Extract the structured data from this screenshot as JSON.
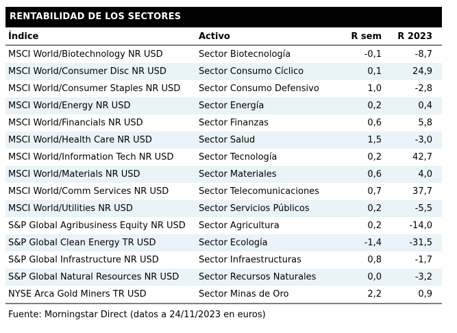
{
  "title": "RENTABILIDAD DE LOS SECTORES",
  "table": {
    "columns": [
      "Índice",
      "Activo",
      "R sem",
      "R 2023"
    ],
    "rows": [
      {
        "indice": "MSCI World/Biotechnology NR USD",
        "activo": "Sector Biotecnología",
        "r_sem": "-0,1",
        "r_2023": "-8,7"
      },
      {
        "indice": "MSCI World/Consumer Disc NR USD",
        "activo": "Sector Consumo Cíclico",
        "r_sem": "0,1",
        "r_2023": "24,9"
      },
      {
        "indice": "MSCI World/Consumer Staples NR USD",
        "activo": "Sector Consumo Defensivo",
        "r_sem": "1,0",
        "r_2023": "-2,8"
      },
      {
        "indice": "MSCI World/Energy NR USD",
        "activo": "Sector Energía",
        "r_sem": "0,2",
        "r_2023": "0,4"
      },
      {
        "indice": "MSCI World/Financials NR USD",
        "activo": "Sector Finanzas",
        "r_sem": "0,6",
        "r_2023": "5,8"
      },
      {
        "indice": "MSCI World/Health Care NR USD",
        "activo": "Sector Salud",
        "r_sem": "1,5",
        "r_2023": "-3,0"
      },
      {
        "indice": "MSCI World/Information Tech NR USD",
        "activo": "Sector Tecnología",
        "r_sem": "0,2",
        "r_2023": "42,7"
      },
      {
        "indice": "MSCI World/Materials NR USD",
        "activo": "Sector Materiales",
        "r_sem": "0,6",
        "r_2023": "4,0"
      },
      {
        "indice": "MSCI World/Comm Services NR USD",
        "activo": "Sector Telecomunicaciones",
        "r_sem": "0,7",
        "r_2023": "37,7"
      },
      {
        "indice": "MSCI World/Utilities NR USD",
        "activo": "Sector Servicios Públicos",
        "r_sem": "0,2",
        "r_2023": "-5,5"
      },
      {
        "indice": "S&P Global Agribusiness Equity NR USD",
        "activo": "Sector Agricultura",
        "r_sem": "0,2",
        "r_2023": "-14,0"
      },
      {
        "indice": "S&P Global Clean Energy TR USD",
        "activo": "Sector Ecología",
        "r_sem": "-1,4",
        "r_2023": "-31,5"
      },
      {
        "indice": "S&P Global Infrastructure NR USD",
        "activo": "Sector Infraestructuras",
        "r_sem": "0,8",
        "r_2023": "-1,7"
      },
      {
        "indice": "S&P Global Natural Resources NR USD",
        "activo": "Sector Recursos Naturales",
        "r_sem": "0,0",
        "r_2023": "-3,2"
      },
      {
        "indice": "NYSE Arca Gold Miners TR USD",
        "activo": "Sector Minas de Oro",
        "r_sem": "2,2",
        "r_2023": "0,9"
      }
    ]
  },
  "footer": "Fuente: Morningstar Direct (datos a 24/11/2023 en euros)",
  "colors": {
    "title_bar_bg": "#000000",
    "title_text": "#ffffff",
    "zebra_row_bg": "#e9f3f8",
    "rule": "#7d7d7d",
    "text": "#000000"
  }
}
